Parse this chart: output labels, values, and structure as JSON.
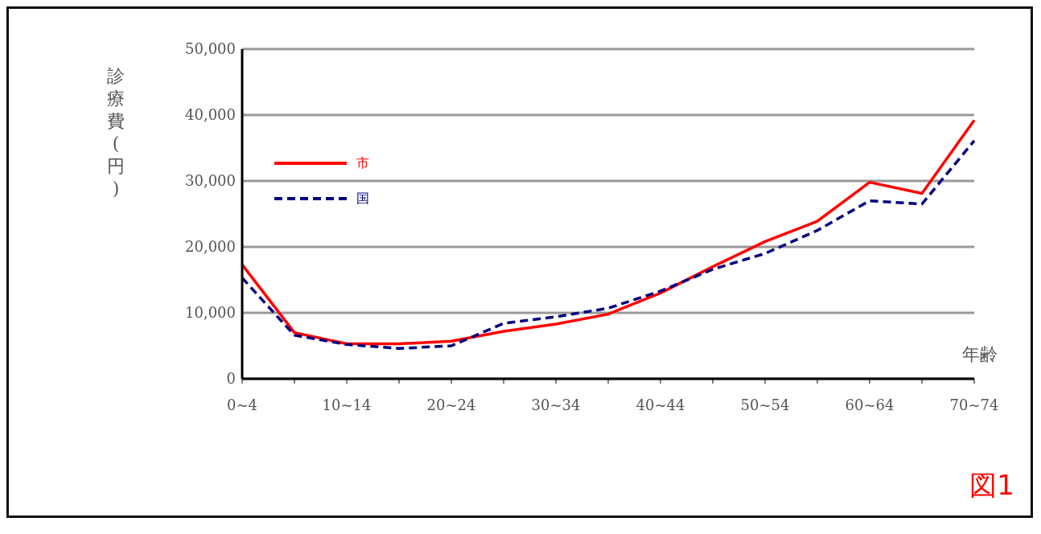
{
  "chart_data": {
    "type": "line",
    "ylabel": "診療費(円)",
    "xlabel": "年齢",
    "categories": [
      "0~4",
      null,
      "10~14",
      null,
      "20~24",
      null,
      "30~34",
      null,
      "40~44",
      null,
      "50~54",
      null,
      "60~64",
      null,
      "70~74"
    ],
    "series": [
      {
        "name": "市",
        "color": "#ff0000",
        "line_style": "solid",
        "values": [
          17300,
          7000,
          5300,
          5300,
          5700,
          7200,
          8300,
          9800,
          13000,
          17000,
          20800,
          23900,
          29800,
          28100,
          39200
        ]
      },
      {
        "name": "国",
        "color": "#000080",
        "line_style": "dashed",
        "values": [
          15300,
          6600,
          5200,
          4600,
          5000,
          8400,
          9400,
          10700,
          13300,
          16600,
          19000,
          22500,
          27000,
          26500,
          36100
        ]
      }
    ],
    "ylim": [
      0,
      50000
    ],
    "yticks": [
      0,
      {
        "value": 10000,
        "label": "10,000"
      },
      {
        "value": 20000,
        "label": "20,000"
      },
      {
        "value": 30000,
        "label": "30,000"
      },
      {
        "value": 40000,
        "label": "40,000"
      },
      {
        "value": 50000,
        "label": "50,000"
      }
    ],
    "grid": "y",
    "legend": "top left",
    "marker": "none",
    "annotations": [
      "図1"
    ]
  }
}
